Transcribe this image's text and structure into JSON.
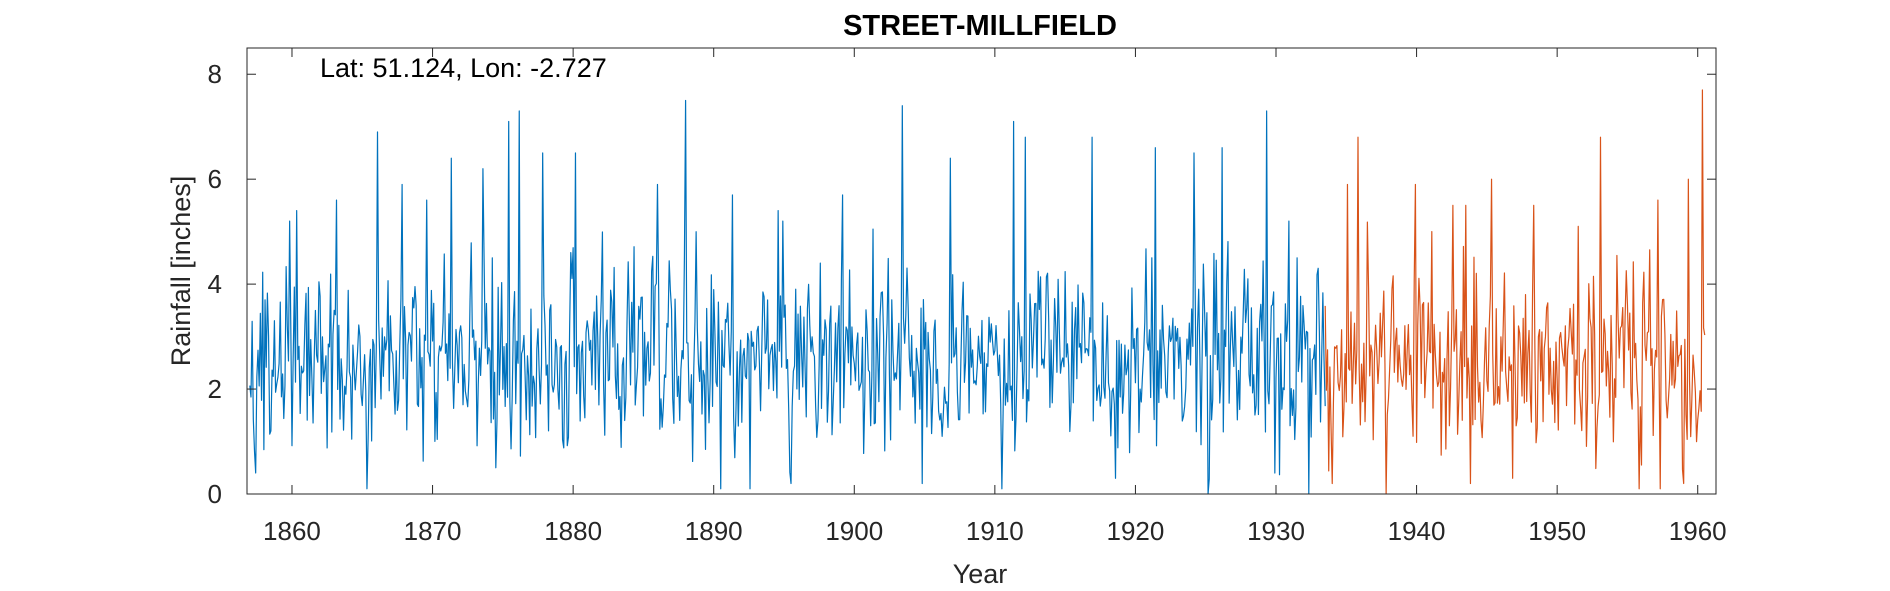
{
  "chart_data": {
    "type": "line",
    "title": "STREET-MILLFIELD",
    "annotation": "Lat: 51.124, Lon: -2.727",
    "xlabel": "Year",
    "ylabel": "Rainfall [inches]",
    "xlim": [
      1856.8,
      1961.3
    ],
    "ylim": [
      0,
      8.5
    ],
    "x_ticks": [
      1860,
      1870,
      1880,
      1890,
      1900,
      1910,
      1920,
      1930,
      1940,
      1950,
      1960
    ],
    "y_ticks": [
      0,
      2,
      4,
      6,
      8
    ],
    "grid": false,
    "frequency": "monthly",
    "series": [
      {
        "color": "#0072BD",
        "x_start": 1857.0,
        "x_end": 1933.5,
        "peaks": [
          [
            1858.1,
            3.7
          ],
          [
            1859.8,
            5.2
          ],
          [
            1860.3,
            5.4
          ],
          [
            1863.2,
            5.6
          ],
          [
            1865.3,
            6.6
          ],
          [
            1866.1,
            6.9
          ],
          [
            1867.8,
            5.9
          ],
          [
            1869.6,
            5.6
          ],
          [
            1871.3,
            6.4
          ],
          [
            1873.6,
            6.2
          ],
          [
            1875.4,
            7.1
          ],
          [
            1876.2,
            7.3
          ],
          [
            1877.8,
            6.5
          ],
          [
            1880.2,
            6.5
          ],
          [
            1886.0,
            5.9
          ],
          [
            1888.0,
            7.5
          ],
          [
            1891.3,
            5.7
          ],
          [
            1894.6,
            5.4
          ],
          [
            1899.2,
            5.7
          ],
          [
            1903.4,
            7.4
          ],
          [
            1906.8,
            6.4
          ],
          [
            1911.3,
            7.1
          ],
          [
            1912.2,
            6.8
          ],
          [
            1916.9,
            6.8
          ],
          [
            1921.4,
            6.6
          ],
          [
            1924.2,
            6.5
          ],
          [
            1926.2,
            6.6
          ],
          [
            1929.3,
            7.3
          ],
          [
            1931.5,
            4.5
          ]
        ],
        "troughs": [
          [
            1857.4,
            0.4
          ],
          [
            1865.3,
            0.1
          ],
          [
            1874.5,
            0.5
          ],
          [
            1890.5,
            0.1
          ],
          [
            1892.6,
            0.1
          ],
          [
            1895.5,
            0.2
          ],
          [
            1904.8,
            0.2
          ],
          [
            1910.5,
            0.1
          ],
          [
            1918.6,
            0.3
          ],
          [
            1925.2,
            0.0
          ],
          [
            1929.9,
            0.4
          ],
          [
            1932.3,
            0.0
          ]
        ]
      },
      {
        "color": "#D95319",
        "x_start": 1933.5,
        "x_end": 1960.5,
        "peaks": [
          [
            1935.1,
            5.9
          ],
          [
            1935.8,
            6.8
          ],
          [
            1939.9,
            5.9
          ],
          [
            1941.1,
            5.0
          ],
          [
            1942.6,
            5.5
          ],
          [
            1943.5,
            5.5
          ],
          [
            1945.3,
            6.0
          ],
          [
            1948.3,
            5.5
          ],
          [
            1951.5,
            5.1
          ],
          [
            1953.1,
            6.8
          ],
          [
            1957.2,
            5.6
          ],
          [
            1959.3,
            6.0
          ],
          [
            1960.3,
            7.7
          ]
        ],
        "troughs": [
          [
            1934.0,
            0.2
          ],
          [
            1937.8,
            0.0
          ],
          [
            1943.8,
            0.2
          ],
          [
            1946.8,
            0.3
          ],
          [
            1955.8,
            0.1
          ],
          [
            1957.3,
            0.1
          ],
          [
            1959.0,
            0.2
          ]
        ]
      }
    ]
  }
}
